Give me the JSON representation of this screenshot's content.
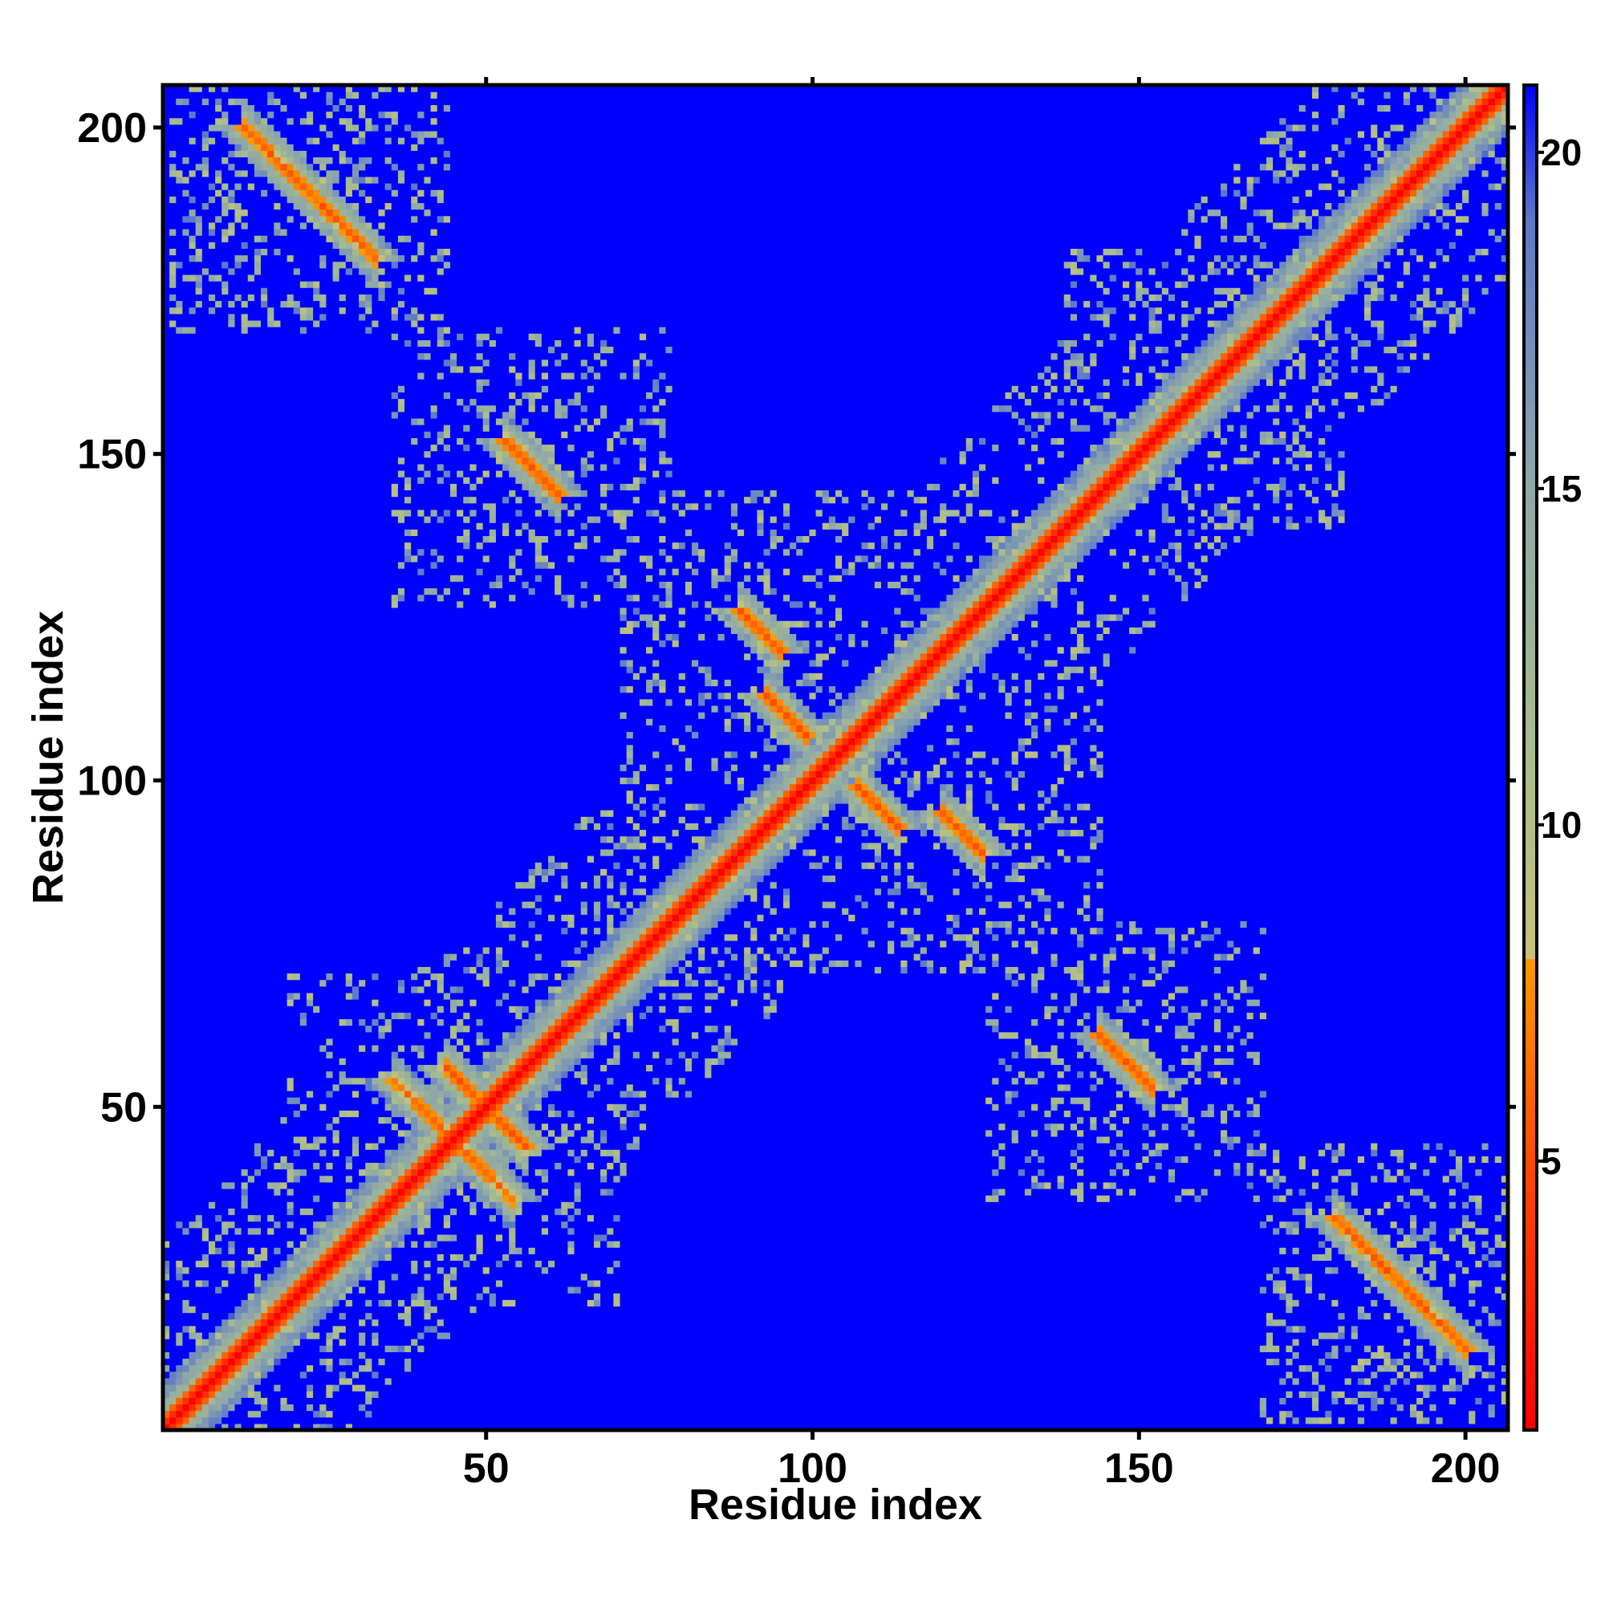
{
  "chart_data": {
    "type": "heatmap",
    "title": "",
    "xlabel": "Residue index",
    "ylabel": "Residue index",
    "n_residues": 206,
    "xlim": [
      1,
      206
    ],
    "ylim": [
      1,
      206
    ],
    "x_ticks": [
      50,
      100,
      150,
      200
    ],
    "y_ticks": [
      50,
      100,
      150,
      200
    ],
    "x_tick_labels": [
      "50",
      "100",
      "150",
      "200"
    ],
    "y_tick_labels": [
      "50",
      "100",
      "150",
      "200"
    ],
    "colorbar": {
      "range": [
        1,
        21
      ],
      "ticks": [
        5,
        10,
        15,
        20
      ],
      "tick_labels": [
        "5",
        "10",
        "15",
        "20"
      ],
      "stops": [
        {
          "value": 1,
          "color": "#ff0000"
        },
        {
          "value": 5,
          "color": "#ff4a00"
        },
        {
          "value": 8,
          "color": "#ff9900"
        },
        {
          "value": 8.01,
          "color": "#c8c07a"
        },
        {
          "value": 11,
          "color": "#a8bd8c"
        },
        {
          "value": 15,
          "color": "#8fa8a8"
        },
        {
          "value": 19,
          "color": "#5c78c8"
        },
        {
          "value": 21,
          "color": "#0000ff"
        }
      ]
    },
    "background_value": 21,
    "colors": {
      "far": "#0000ff",
      "mid": "#a9bf8e",
      "near": "#ff9900",
      "contact": "#ff0000"
    },
    "contact_features": [
      {
        "kind": "diagonal",
        "from": 1,
        "to": 206
      },
      {
        "kind": "antiparallel",
        "center": [
          50,
          50
        ],
        "length": 12
      },
      {
        "kind": "antiparallel",
        "center": [
          41,
          49
        ],
        "length": 10
      },
      {
        "kind": "antiparallel",
        "center": [
          23,
          190
        ],
        "length": 20
      },
      {
        "kind": "antiparallel",
        "center": [
          57,
          148
        ],
        "length": 8
      },
      {
        "kind": "antiparallel",
        "center": [
          148,
          57
        ],
        "length": 8
      },
      {
        "kind": "antiparallel",
        "center": [
          190,
          23
        ],
        "length": 20
      },
      {
        "kind": "antiparallel",
        "center": [
          92,
          123
        ],
        "length": 6
      },
      {
        "kind": "antiparallel",
        "center": [
          123,
          92
        ],
        "length": 6
      },
      {
        "kind": "antiparallel",
        "center": [
          110,
          96
        ],
        "length": 6
      },
      {
        "kind": "antiparallel",
        "center": [
          96,
          110
        ],
        "length": 6
      },
      {
        "kind": "parallel",
        "center": [
          160,
          160
        ],
        "length": 8
      }
    ]
  }
}
